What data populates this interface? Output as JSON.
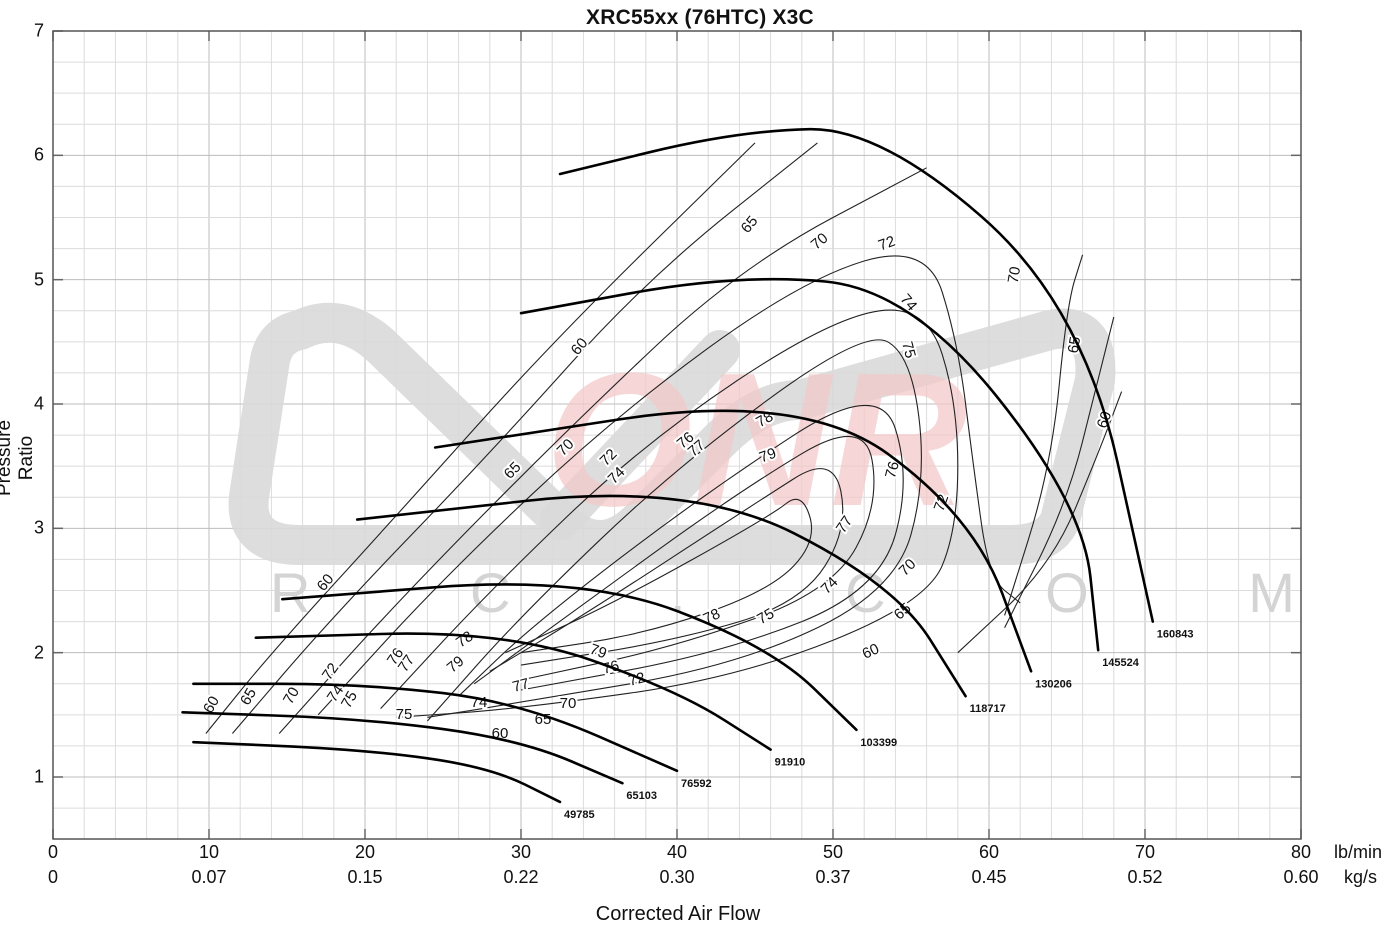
{
  "chart": {
    "title": "XRC55xx (76HTC) X3C",
    "ylabel": "Pressure Ratio",
    "xlabel": "Corrected Air Flow",
    "x_unit_primary": "lb/min",
    "x_unit_secondary": "kg/s",
    "y_ticks": [
      "1",
      "2",
      "3",
      "4",
      "5",
      "6",
      "7"
    ],
    "x_ticks_lbmin": [
      "0",
      "10",
      "20",
      "30",
      "40",
      "50",
      "60",
      "70",
      "80"
    ],
    "x_ticks_kgs": [
      "0",
      "0.07",
      "0.15",
      "0.22",
      "0.30",
      "0.37",
      "0.45",
      "0.52",
      "0.60"
    ],
    "watermark": {
      "main": "ONR",
      "sub": "R C . C O M",
      "gray": "#d9d9d9",
      "pink": "#f3c9c9"
    }
  },
  "chart_data": {
    "type": "line",
    "title": "XRC55xx (76HTC) X3C",
    "xlabel": "Corrected Air Flow (lb/min)",
    "ylabel": "Pressure Ratio",
    "xlim": [
      0,
      80
    ],
    "ylim": [
      0.5,
      7
    ],
    "grid": true,
    "secondary_x_axis": {
      "unit": "kg/s",
      "ticks": [
        0,
        0.07,
        0.15,
        0.22,
        0.3,
        0.37,
        0.45,
        0.52,
        0.6
      ]
    },
    "speed_lines": [
      {
        "name": "49785",
        "points": [
          [
            9,
            1.28
          ],
          [
            20,
            1.22
          ],
          [
            28,
            1.08
          ],
          [
            32.5,
            0.8
          ]
        ]
      },
      {
        "name": "65103",
        "points": [
          [
            8.3,
            1.52
          ],
          [
            20,
            1.47
          ],
          [
            30,
            1.3
          ],
          [
            36.5,
            0.95
          ]
        ]
      },
      {
        "name": "76592",
        "points": [
          [
            9,
            1.75
          ],
          [
            20,
            1.75
          ],
          [
            30,
            1.6
          ],
          [
            40,
            1.05
          ]
        ]
      },
      {
        "name": "91910",
        "points": [
          [
            13,
            2.12
          ],
          [
            29,
            2.18
          ],
          [
            40,
            1.7
          ],
          [
            46,
            1.22
          ]
        ]
      },
      {
        "name": "103399",
        "points": [
          [
            14.7,
            2.43
          ],
          [
            34,
            2.62
          ],
          [
            46,
            2.05
          ],
          [
            51.5,
            1.38
          ]
        ]
      },
      {
        "name": "118717",
        "points": [
          [
            19.5,
            3.07
          ],
          [
            41,
            3.37
          ],
          [
            54,
            2.55
          ],
          [
            58.5,
            1.65
          ]
        ]
      },
      {
        "name": "130206",
        "points": [
          [
            24.5,
            3.65
          ],
          [
            48,
            4.1
          ],
          [
            59,
            3.1
          ],
          [
            62.7,
            1.85
          ]
        ]
      },
      {
        "name": "145524",
        "points": [
          [
            30,
            4.73
          ],
          [
            44,
            5.05
          ],
          [
            55,
            4.92
          ],
          [
            66,
            3.2
          ],
          [
            67,
            2.02
          ]
        ]
      },
      {
        "name": "160843",
        "points": [
          [
            32.5,
            5.85
          ],
          [
            44,
            6.2
          ],
          [
            53,
            6.22
          ],
          [
            66,
            4.8
          ],
          [
            70.5,
            2.25
          ]
        ]
      }
    ],
    "efficiency_islands": [
      "60",
      "65",
      "70",
      "72",
      "74",
      "75",
      "76",
      "77",
      "78",
      "79"
    ],
    "peak_efficiency": 79
  }
}
